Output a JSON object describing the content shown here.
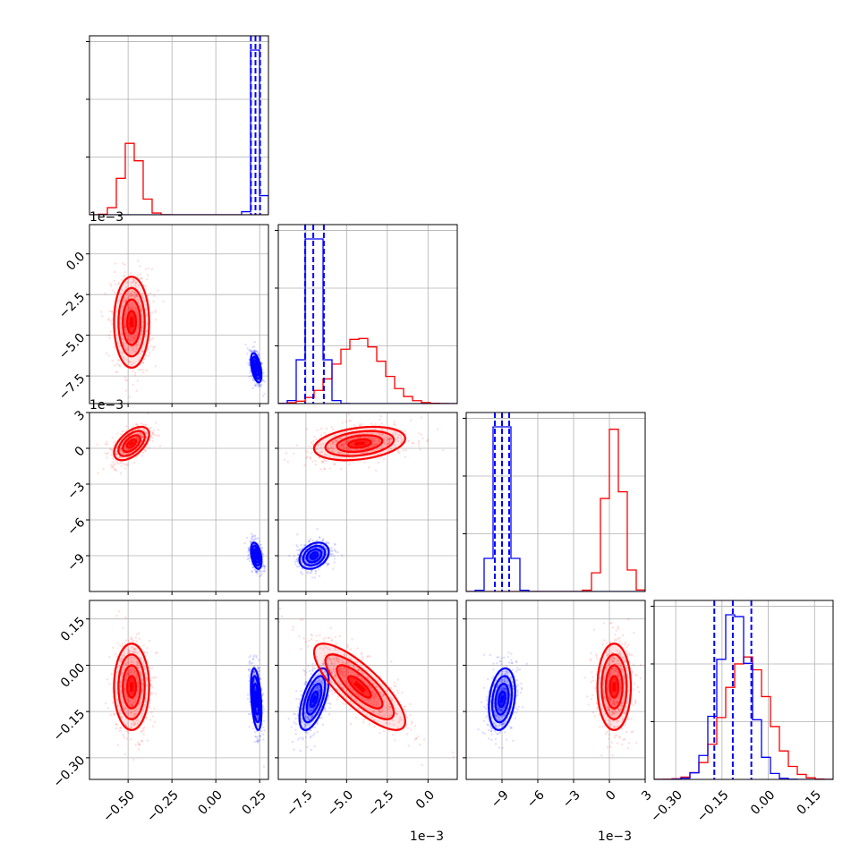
{
  "chart_data": {
    "type": "corner",
    "grid": true,
    "colors": {
      "red": "#ff0000",
      "blue": "#0000ff"
    },
    "series": [
      {
        "color": "#ff0000",
        "p0": {
          "mean": -0.48,
          "sd": 0.05
        },
        "p1": {
          "mean": -4.2,
          "sd": 1.4
        },
        "p2": {
          "mean": 0.4,
          "sd": 0.7
        },
        "p3": {
          "mean": -0.07,
          "sd": 0.07
        }
      },
      {
        "color": "#0000ff",
        "p0": {
          "mean": 0.23,
          "sd": 0.015
        },
        "p1": {
          "mean": -7.0,
          "sd": 0.45
        },
        "p2": {
          "mean": -9.0,
          "sd": 0.55
        },
        "p3": {
          "mean": -0.11,
          "sd": 0.05
        }
      }
    ],
    "quantile_lines_blue": {
      "p0": [
        0.2,
        0.226,
        0.252
      ],
      "p1": [
        -7.55,
        -7.05,
        -6.4
      ],
      "p2": [
        -9.6,
        -9.0,
        -8.4
      ],
      "p3": [
        -0.175,
        -0.115,
        -0.055
      ]
    },
    "axes": {
      "p0": {
        "range": [
          -0.72,
          0.3
        ],
        "ticks": [
          "-0.50",
          "-0.25",
          "0.00",
          "0.25"
        ],
        "tick_values": [
          -0.5,
          -0.25,
          0.0,
          0.25
        ],
        "offset": ""
      },
      "p1": {
        "range": [
          -9.2,
          1.8
        ],
        "ticks": [
          "-7.5",
          "-5.0",
          "-2.5",
          "0.0"
        ],
        "tick_values": [
          -7.5,
          -5.0,
          -2.5,
          0.0
        ],
        "offset": "1e−3"
      },
      "p2": {
        "range": [
          -12,
          3
        ],
        "ticks": [
          "-9",
          "-6",
          "-3",
          "0",
          "3"
        ],
        "tick_values": [
          -9,
          -6,
          -3,
          0,
          3
        ],
        "offset": "1e−3"
      },
      "p3": {
        "range": [
          -0.37,
          0.21
        ],
        "ticks": [
          "-0.30",
          "-0.15",
          "0.00",
          "0.15"
        ],
        "tick_values": [
          -0.3,
          -0.15,
          0.0,
          0.15
        ],
        "offset": ""
      }
    },
    "correlations": {
      "red": {
        "p0p1": 0.0,
        "p0p2": 0.55,
        "p0p3": 0.0,
        "p1p2": 0.3,
        "p1p3": -0.8,
        "p2p3": 0.0
      },
      "blue": {
        "p0p1": -0.5,
        "p0p2": -0.4,
        "p0p3": -0.4,
        "p1p2": 0.3,
        "p1p3": 0.6,
        "p2p3": 0.25
      }
    }
  }
}
